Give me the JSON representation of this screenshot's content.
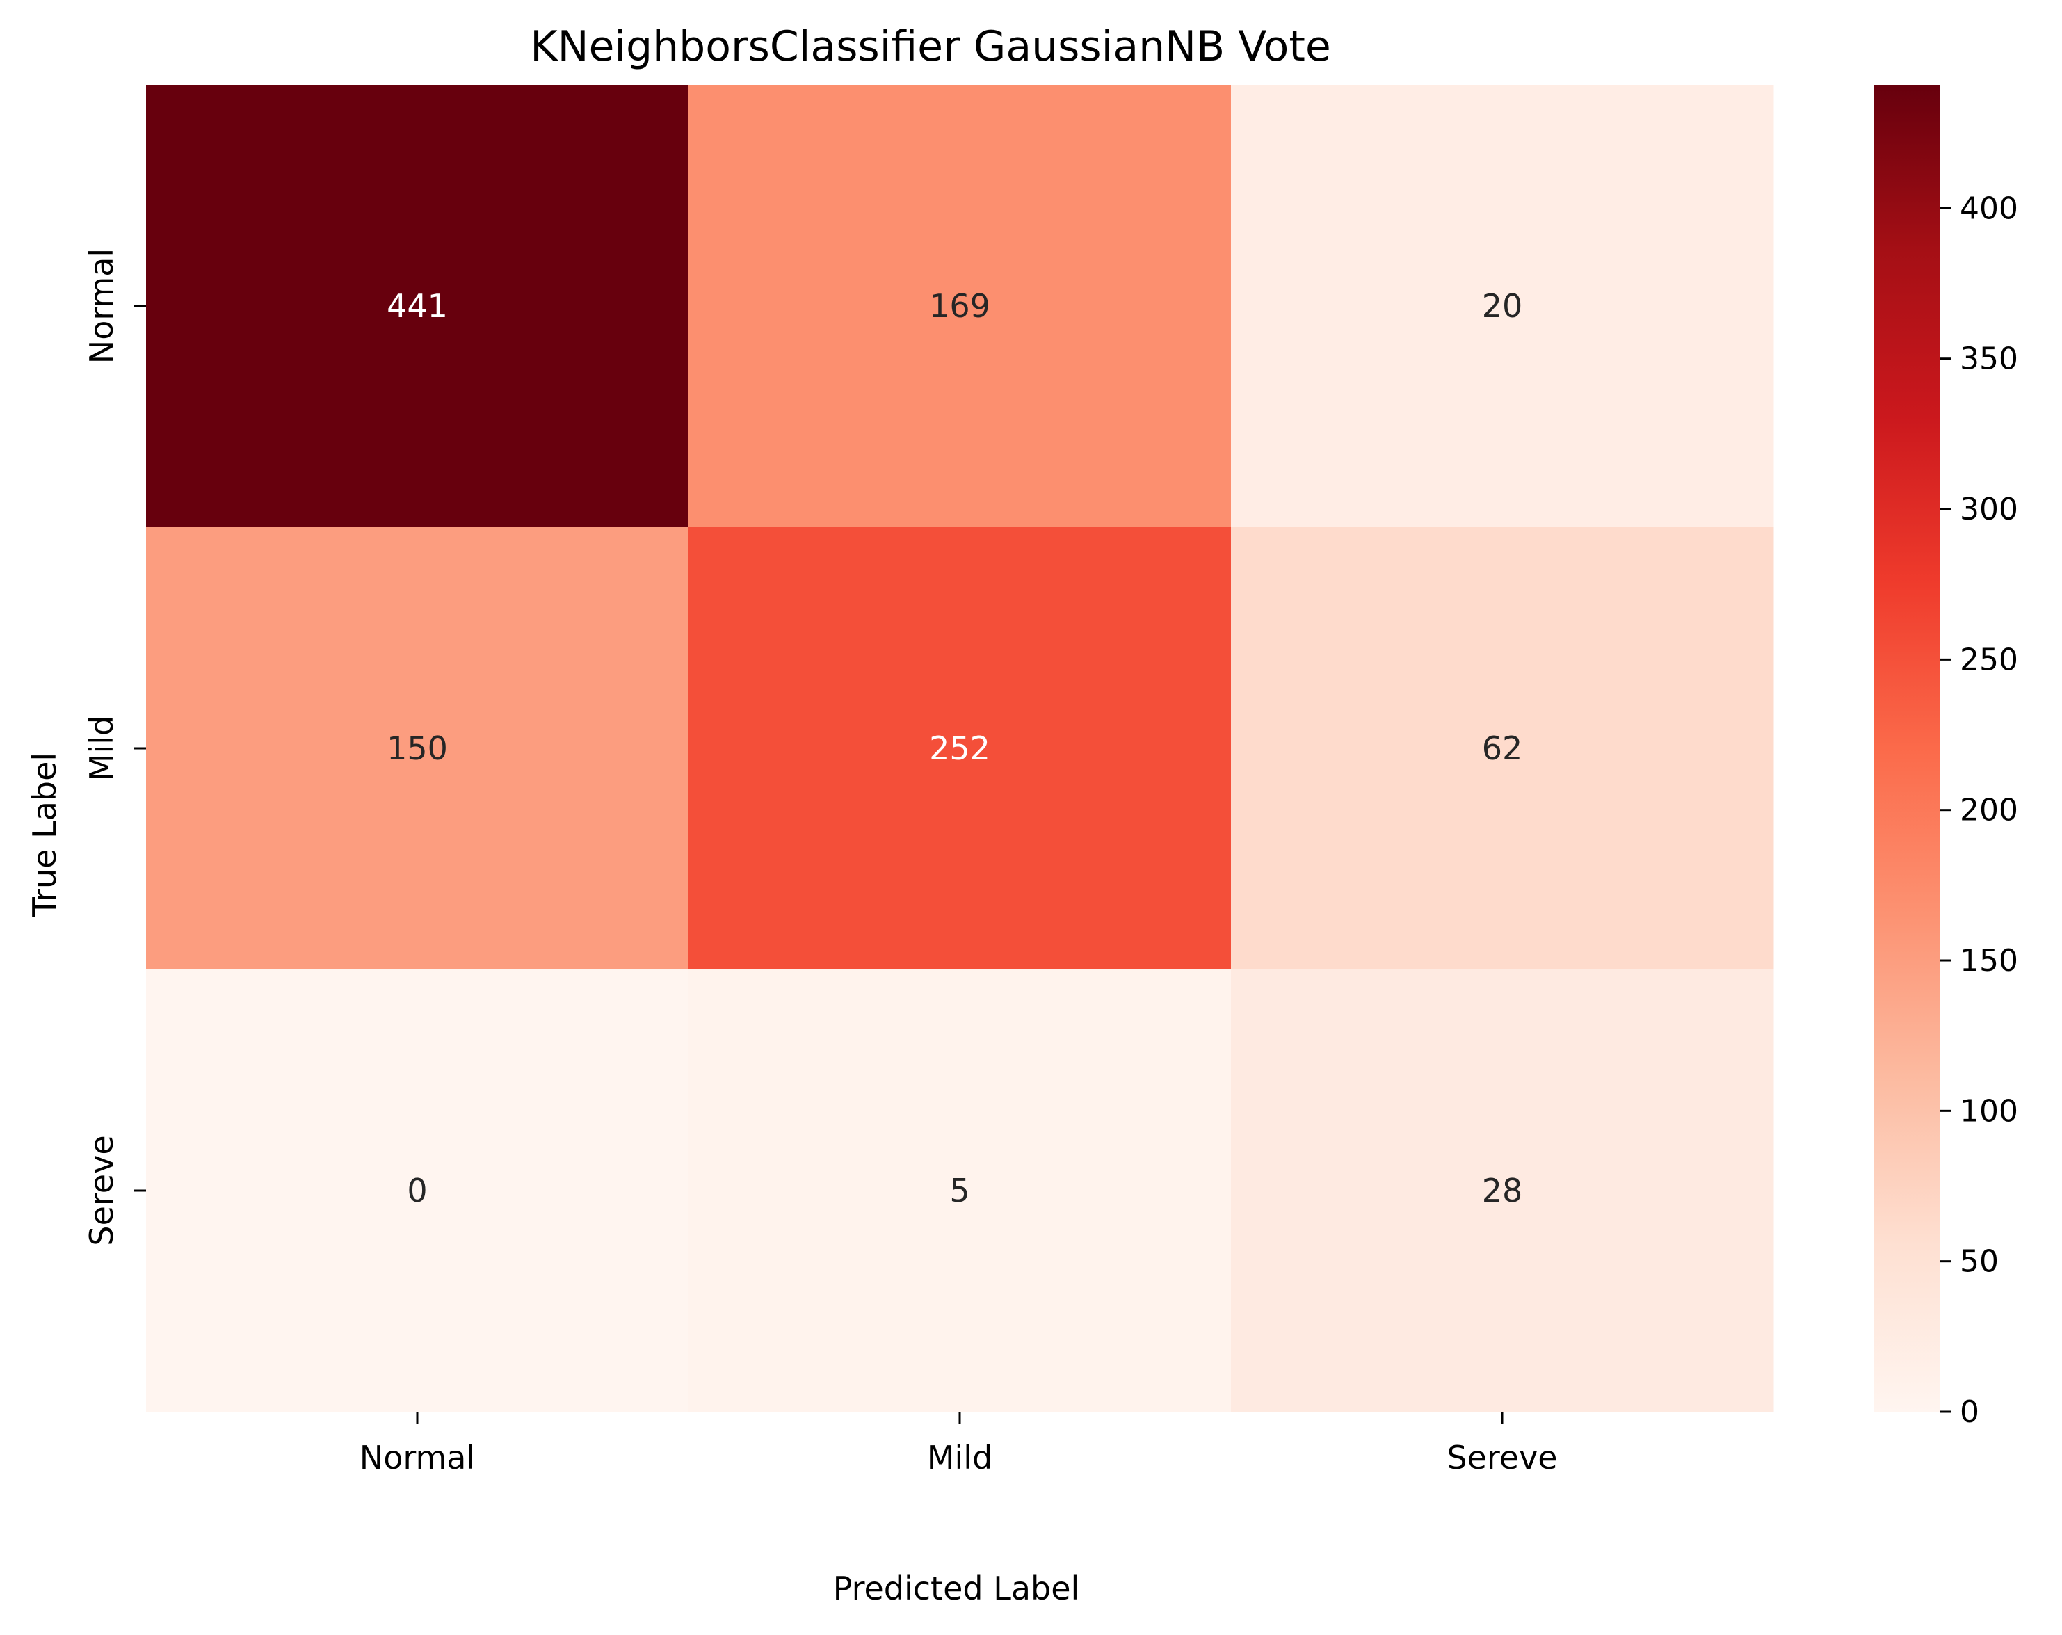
{
  "chart_data": {
    "type": "heatmap",
    "title": "KNeighborsClassifier GaussianNB Vote",
    "xlabel": "Predicted Label",
    "ylabel": "True Label",
    "x_categories": [
      "Normal",
      "Mild",
      "Sereve"
    ],
    "y_categories": [
      "Normal",
      "Mild",
      "Sereve"
    ],
    "values": [
      [
        441,
        169,
        20
      ],
      [
        150,
        252,
        62
      ],
      [
        0,
        5,
        28
      ]
    ],
    "colormap": "Reds",
    "colorbar": {
      "range": [
        0,
        441
      ],
      "ticks": [
        0,
        50,
        100,
        150,
        200,
        250,
        300,
        350,
        400
      ]
    },
    "grid": false,
    "legend": "colorbar-right"
  }
}
